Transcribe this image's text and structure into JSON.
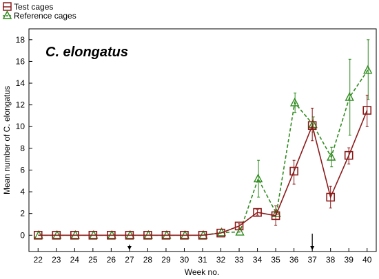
{
  "chart_data": {
    "type": "line",
    "title": "",
    "annotation": "C. elongatus",
    "xlabel": "Week no.",
    "ylabel": "Mean number of C. elongatus",
    "x": [
      22,
      23,
      24,
      25,
      26,
      27,
      28,
      29,
      30,
      31,
      32,
      33,
      34,
      35,
      36,
      37,
      38,
      39,
      40
    ],
    "xlim": [
      21.5,
      40.5
    ],
    "ylim": [
      -1.5,
      19
    ],
    "yticks": [
      0,
      2,
      4,
      6,
      8,
      10,
      12,
      14,
      16,
      18
    ],
    "grid": false,
    "legend_position": "top-left",
    "markers": [
      27,
      37
    ],
    "series": [
      {
        "name": "Test cages",
        "color": "#8b1a1a",
        "marker": "square",
        "line": "solid",
        "values": [
          0,
          0,
          0,
          0,
          0,
          0,
          0,
          0,
          0,
          0,
          0.2,
          0.85,
          2.1,
          1.8,
          5.9,
          10.1,
          3.5,
          7.35,
          11.5
        ],
        "err_low": [
          0,
          0,
          0,
          0,
          0,
          0,
          0,
          0,
          0,
          0,
          0,
          0.2,
          0.25,
          0.9,
          1.2,
          1.4,
          1.0,
          0.8,
          1.5
        ],
        "err_high": [
          0,
          0,
          0,
          0,
          0,
          0,
          0,
          0,
          0,
          0,
          0,
          0.2,
          0.25,
          0.9,
          1.0,
          1.6,
          1.0,
          0.7,
          1.4
        ]
      },
      {
        "name": "Reference cages",
        "color": "#2e8b1e",
        "marker": "triangle",
        "line": "dashed",
        "values": [
          0,
          0,
          0,
          0,
          0,
          0,
          0,
          0,
          0,
          0,
          0.25,
          0.3,
          5.2,
          2.0,
          12.2,
          10.2,
          7.2,
          12.7,
          15.2
        ],
        "err_low": [
          0,
          0,
          0,
          0,
          0,
          0,
          0,
          0,
          0,
          0,
          0,
          0,
          1.7,
          0.1,
          0.9,
          0.7,
          0.9,
          3.5,
          2.7
        ],
        "err_high": [
          0,
          0,
          0,
          0,
          0,
          0,
          0,
          0,
          0,
          0,
          0,
          0,
          1.7,
          0.1,
          0.9,
          0.7,
          0.9,
          3.5,
          2.8
        ]
      }
    ]
  }
}
